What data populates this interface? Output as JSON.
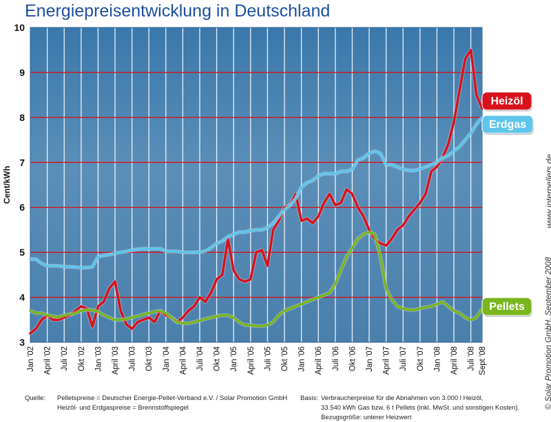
{
  "chart_data": {
    "type": "line",
    "title": "Energiepreisentwicklung in Deutschland",
    "ylabel": "Cent/kWh",
    "xlabel": "",
    "ylim": [
      3,
      10
    ],
    "yticks": [
      "3",
      "4",
      "5",
      "6",
      "7",
      "8",
      "9",
      "10"
    ],
    "x_months": 81,
    "xticks": [
      {
        "label": "Jan '02",
        "month": 0
      },
      {
        "label": "April '02",
        "month": 3
      },
      {
        "label": "Juli '02",
        "month": 6
      },
      {
        "label": "Okt '02",
        "month": 9
      },
      {
        "label": "Jan '03",
        "month": 12
      },
      {
        "label": "April '03",
        "month": 15
      },
      {
        "label": "Juli '03",
        "month": 18
      },
      {
        "label": "Okt '03",
        "month": 21
      },
      {
        "label": "Jan '04",
        "month": 24
      },
      {
        "label": "April '04",
        "month": 27
      },
      {
        "label": "Juli '04",
        "month": 30
      },
      {
        "label": "Okt '04",
        "month": 33
      },
      {
        "label": "Jan '05",
        "month": 36
      },
      {
        "label": "April '05",
        "month": 39
      },
      {
        "label": "Juli '05",
        "month": 42
      },
      {
        "label": "Okt '05",
        "month": 45
      },
      {
        "label": "Jan '06",
        "month": 48
      },
      {
        "label": "April '06",
        "month": 51
      },
      {
        "label": "Juli '06",
        "month": 54
      },
      {
        "label": "Okt '06",
        "month": 57
      },
      {
        "label": "Jan '07",
        "month": 60
      },
      {
        "label": "April '07",
        "month": 63
      },
      {
        "label": "Juli '07",
        "month": 66
      },
      {
        "label": "Okt '07",
        "month": 69
      },
      {
        "label": "Jan '08",
        "month": 72
      },
      {
        "label": "April '08",
        "month": 75
      },
      {
        "label": "Juli '08",
        "month": 78
      },
      {
        "label": "Sept '08",
        "month": 80
      }
    ],
    "grid": true,
    "series": [
      {
        "name": "Heizöl",
        "color": "#d7121d",
        "values": [
          3.2,
          3.3,
          3.5,
          3.6,
          3.5,
          3.5,
          3.55,
          3.6,
          3.7,
          3.8,
          3.75,
          3.35,
          3.8,
          3.9,
          4.2,
          4.35,
          3.7,
          3.4,
          3.3,
          3.45,
          3.5,
          3.55,
          3.45,
          3.7,
          3.6,
          3.55,
          3.45,
          3.55,
          3.7,
          3.8,
          4.0,
          3.9,
          4.1,
          4.4,
          4.5,
          5.3,
          4.6,
          4.4,
          4.35,
          4.4,
          5.0,
          5.05,
          4.7,
          5.5,
          5.7,
          6.0,
          6.05,
          6.3,
          5.7,
          5.75,
          5.65,
          5.8,
          6.1,
          6.3,
          6.05,
          6.1,
          6.4,
          6.3,
          6.0,
          5.8,
          5.5,
          5.3,
          5.2,
          5.15,
          5.3,
          5.5,
          5.6,
          5.8,
          5.95,
          6.1,
          6.3,
          6.8,
          6.9,
          7.1,
          7.4,
          7.9,
          8.6,
          9.3,
          9.5,
          8.5,
          8.2
        ]
      },
      {
        "name": "Erdgas",
        "color": "#5fc5eb",
        "values": [
          4.85,
          4.85,
          4.75,
          4.7,
          4.7,
          4.7,
          4.68,
          4.68,
          4.67,
          4.66,
          4.66,
          4.68,
          4.9,
          4.93,
          4.95,
          4.98,
          5.0,
          5.02,
          5.05,
          5.07,
          5.08,
          5.08,
          5.08,
          5.08,
          5.02,
          5.02,
          5.02,
          5.0,
          5.0,
          5.0,
          5.0,
          5.03,
          5.1,
          5.2,
          5.25,
          5.35,
          5.4,
          5.45,
          5.45,
          5.48,
          5.5,
          5.5,
          5.55,
          5.65,
          5.8,
          5.95,
          6.05,
          6.2,
          6.45,
          6.55,
          6.6,
          6.7,
          6.75,
          6.75,
          6.75,
          6.8,
          6.8,
          6.85,
          7.05,
          7.1,
          7.2,
          7.25,
          7.2,
          6.95,
          6.95,
          6.9,
          6.85,
          6.82,
          6.82,
          6.85,
          6.9,
          6.95,
          7.0,
          7.1,
          7.15,
          7.25,
          7.35,
          7.5,
          7.65,
          7.85,
          8.0
        ]
      },
      {
        "name": "Pellets",
        "color": "#7ab51d",
        "values": [
          3.7,
          3.65,
          3.65,
          3.6,
          3.58,
          3.56,
          3.6,
          3.62,
          3.65,
          3.7,
          3.72,
          3.72,
          3.68,
          3.6,
          3.55,
          3.5,
          3.5,
          3.52,
          3.55,
          3.58,
          3.62,
          3.65,
          3.68,
          3.7,
          3.65,
          3.55,
          3.45,
          3.42,
          3.42,
          3.45,
          3.48,
          3.52,
          3.55,
          3.58,
          3.6,
          3.6,
          3.55,
          3.45,
          3.38,
          3.38,
          3.36,
          3.36,
          3.38,
          3.45,
          3.6,
          3.7,
          3.75,
          3.8,
          3.85,
          3.9,
          3.95,
          4.0,
          4.05,
          4.1,
          4.3,
          4.6,
          4.9,
          5.1,
          5.3,
          5.4,
          5.45,
          5.4,
          4.9,
          4.2,
          3.95,
          3.8,
          3.75,
          3.72,
          3.72,
          3.75,
          3.78,
          3.8,
          3.85,
          3.9,
          3.8,
          3.7,
          3.65,
          3.55,
          3.5,
          3.55,
          3.75
        ]
      }
    ]
  },
  "footer": {
    "source_label": "Quelle:",
    "source_line1": "Pelletspreise = Deutscher Energie-Pellet-Verband e.V. / Solar Promotion GmbH",
    "source_line2": "Heizöl- und Erdgaspreise = Brennstoffspiegel",
    "basis_label": "Basis:",
    "basis_line1": "Verbraucherpreise für die Abnahmen von 3.000 l Heizöl,",
    "basis_line2": "33.540 kWh Gas bzw. 6 t Pellets (inkl. MwSt. und sonstigen Kosten).",
    "basis_line3": "Bezugsgröße: unterer Heizwert"
  },
  "side": {
    "credit": "© Solar Promotion GmbH, September 2008",
    "url": "www.interpellets.de"
  }
}
